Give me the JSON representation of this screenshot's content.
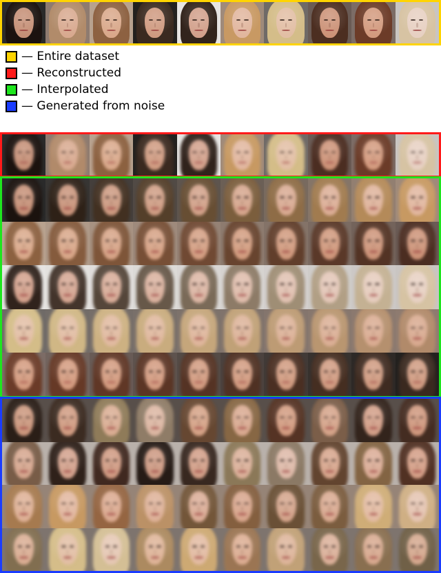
{
  "legend": {
    "items": [
      {
        "label": "— Entire dataset",
        "color": "#ffd400"
      },
      {
        "label": "— Reconstructed",
        "color": "#ff1a1a"
      },
      {
        "label": "— Interpolated",
        "color": "#1ee61e"
      },
      {
        "label": "— Generated from noise",
        "color": "#1a3cff"
      }
    ]
  },
  "sections": [
    {
      "name": "entire-dataset",
      "border": "#ffd400",
      "rows": 1,
      "blurred": false
    },
    {
      "name": "reconstructed",
      "border": "#ff1a1a",
      "rows": 1,
      "blurred": true
    },
    {
      "name": "interpolated",
      "border": "#1ee61e",
      "rows": 5,
      "blurred": true
    },
    {
      "name": "generated-from-noise",
      "border": "#1a3cff",
      "rows": 4,
      "blurred": true
    }
  ],
  "faces": [
    {
      "bg": "#2a2a2a",
      "hair": "#1b120e",
      "skin": "#c58f76"
    },
    {
      "bg": "#8e7b70",
      "hair": "#b38b6a",
      "skin": "#d8a98f"
    },
    {
      "bg": "#b8a28f",
      "hair": "#8b5f3e",
      "skin": "#d9a88a"
    },
    {
      "bg": "#23211f",
      "hair": "#3b2a20",
      "skin": "#cf9a80"
    },
    {
      "bg": "#e6e4e2",
      "hair": "#2b1d16",
      "skin": "#d2a08b"
    },
    {
      "bg": "#9f8a7a",
      "hair": "#c99a62",
      "skin": "#e1b69e"
    },
    {
      "bg": "#6f6a67",
      "hair": "#d8c08a",
      "skin": "#e2bea4"
    },
    {
      "bg": "#6a5b55",
      "hair": "#4b2c20",
      "skin": "#cc9277"
    },
    {
      "bg": "#7c6c66",
      "hair": "#6b3a26",
      "skin": "#d39a7e"
    },
    {
      "bg": "#c9c5c2",
      "hair": "#d7c3a2",
      "skin": "#e7d0c2"
    }
  ]
}
